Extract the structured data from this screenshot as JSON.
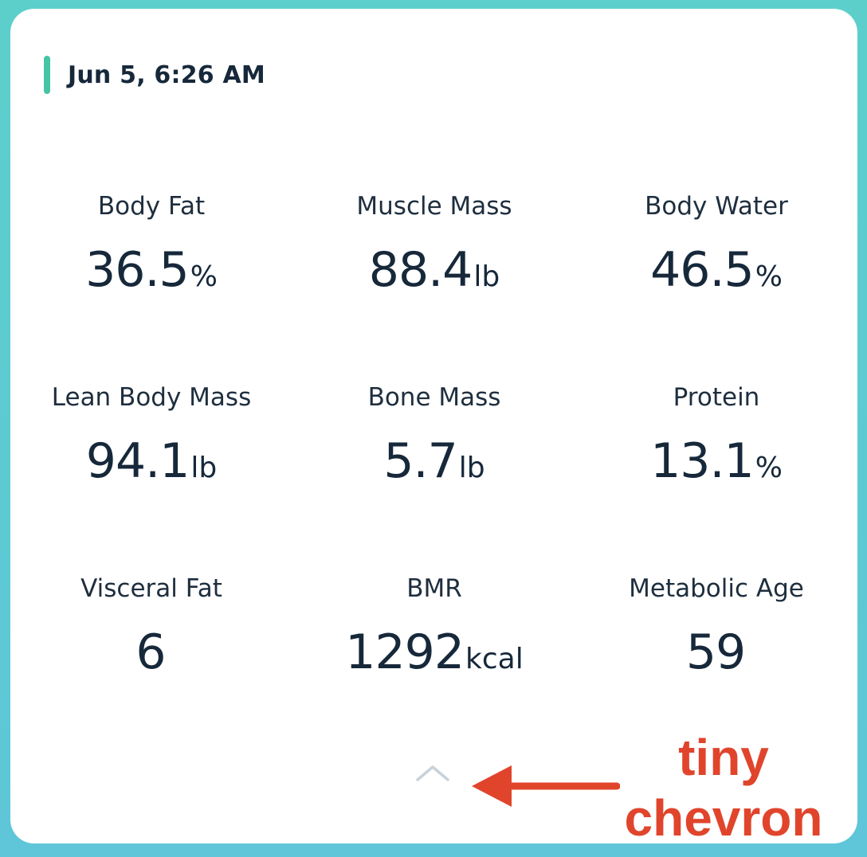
{
  "header": {
    "timestamp": "Jun 5, 6:26 AM"
  },
  "metrics": [
    {
      "label": "Body Fat",
      "value": "36.5",
      "unit": "%"
    },
    {
      "label": "Muscle Mass",
      "value": "88.4",
      "unit": "lb"
    },
    {
      "label": "Body Water",
      "value": "46.5",
      "unit": "%"
    },
    {
      "label": "Lean Body Mass",
      "value": "94.1",
      "unit": "lb"
    },
    {
      "label": "Bone Mass",
      "value": "5.7",
      "unit": "lb"
    },
    {
      "label": "Protein",
      "value": "13.1",
      "unit": "%"
    },
    {
      "label": "Visceral Fat",
      "value": "6",
      "unit": ""
    },
    {
      "label": "BMR",
      "value": "1292",
      "unit": "kcal"
    },
    {
      "label": "Metabolic Age",
      "value": "59",
      "unit": ""
    }
  ],
  "icons": {
    "collapse": "chevron-up-icon",
    "annotation": "arrow-left-icon"
  },
  "annotation": {
    "line1": "tiny",
    "line2": "chevron"
  },
  "colors": {
    "accent": "#45c5a3",
    "annotation": "#e0452c",
    "chevron": "#c8d2d8"
  }
}
